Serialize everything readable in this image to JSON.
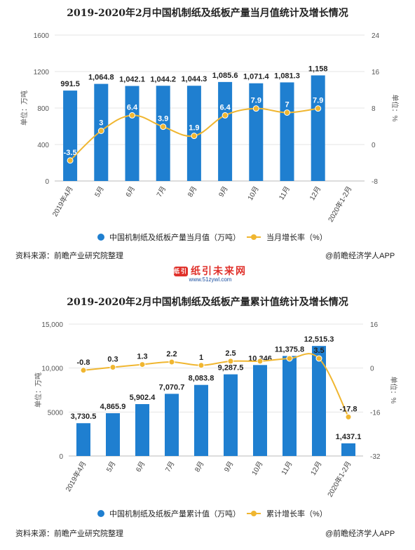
{
  "charts": [
    {
      "title": "2019-2020年2月中国机制纸及纸板产量当月值统计及增长情况",
      "left_axis_label": "单位：万吨",
      "right_axis_label": "单位：%",
      "legend": [
        "中国机制纸及纸板产量当月值（万吨）",
        "当月增长率（%）"
      ],
      "source": "资料来源：前瞻产业研究院整理",
      "brand": "@前瞻经济学人APP"
    },
    {
      "title": "2019-2020年2月中国机制纸及纸板产量累计值统计及增长情况",
      "left_axis_label": "单位：万吨",
      "right_axis_label": "单位：%",
      "legend": [
        "中国机制纸及纸板产量累计值（万吨）",
        "累计增长率（%）"
      ],
      "source": "资料来源：前瞻产业研究院整理",
      "brand": "@前瞻经济学人APP"
    }
  ],
  "logo": {
    "text": "纸引未来网",
    "url": "www.51zywl.com",
    "mark": "纸引未来"
  },
  "colors": {
    "bar": "#1f7fd0",
    "line": "#f0b630",
    "grid": "#e6e6e6"
  },
  "chart_data": [
    {
      "type": "bar",
      "title": "2019-2020年2月中国机制纸及纸板产量当月值统计及增长情况",
      "categories": [
        "2019年4月",
        "5月",
        "6月",
        "7月",
        "8月",
        "9月",
        "10月",
        "11月",
        "12月",
        "2020年1-2月"
      ],
      "series": [
        {
          "name": "中国机制纸及纸板产量当月值（万吨）",
          "axis": "left",
          "kind": "bar",
          "values": [
            991.5,
            1064.8,
            1042.1,
            1044.2,
            1044.3,
            1085.6,
            1071.4,
            1081.3,
            1158,
            null
          ],
          "labels": [
            "991.5",
            "1,064.8",
            "1,042.1",
            "1,044.2",
            "1,044.3",
            "1,085.6",
            "1,071.4",
            "1,081.3",
            "1,158",
            ""
          ]
        },
        {
          "name": "当月增长率（%）",
          "axis": "right",
          "kind": "line",
          "values": [
            -3.5,
            3,
            6.4,
            3.9,
            1.9,
            6.4,
            7.9,
            7,
            7.9,
            null
          ],
          "labels": [
            "-3.5",
            "3",
            "6.4",
            "3.9",
            "1.9",
            "6.4",
            "7.9",
            "7",
            "7.9",
            ""
          ]
        }
      ],
      "ylim_left": [
        0,
        1600
      ],
      "yticks_left": [
        "0",
        "400",
        "800",
        "1200",
        "1600"
      ],
      "ylim_right": [
        -8,
        24
      ],
      "yticks_right": [
        "-8",
        "0",
        "8",
        "16",
        "24"
      ],
      "ylabel_left": "单位：万吨",
      "ylabel_right": "单位：%",
      "legend_position": "bottom",
      "grid": true
    },
    {
      "type": "bar",
      "title": "2019-2020年2月中国机制纸及纸板产量累计值统计及增长情况",
      "categories": [
        "2019年4月",
        "5月",
        "6月",
        "7月",
        "8月",
        "9月",
        "10月",
        "11月",
        "12月",
        "2020年1-2月"
      ],
      "series": [
        {
          "name": "中国机制纸及纸板产量累计值（万吨）",
          "axis": "left",
          "kind": "bar",
          "values": [
            3730.5,
            4865.9,
            5902.4,
            7070.7,
            8083.8,
            9287.5,
            10346,
            11375.8,
            12515.3,
            1437.1
          ],
          "labels": [
            "3,730.5",
            "4,865.9",
            "5,902.4",
            "7,070.7",
            "8,083.8",
            "9,287.5",
            "10,346",
            "11,375.8",
            "12,515.3",
            "1,437.1"
          ]
        },
        {
          "name": "累计增长率（%）",
          "axis": "right",
          "kind": "line",
          "values": [
            -0.8,
            0.3,
            1.3,
            2.2,
            1,
            2.5,
            2.5,
            3.5,
            3.5,
            -17.8
          ],
          "labels": [
            "-0.8",
            "0.3",
            "1.3",
            "2.2",
            "1",
            "2.5",
            "",
            "",
            "3.5",
            "-17.8"
          ]
        }
      ],
      "ylim_left": [
        0,
        15000
      ],
      "yticks_left": [
        "0",
        "5000",
        "10,000",
        "15,000"
      ],
      "ylim_right": [
        -32,
        16
      ],
      "yticks_right": [
        "-32",
        "-16",
        "0",
        "16"
      ],
      "ylabel_left": "单位：万吨",
      "ylabel_right": "单位：%",
      "legend_position": "bottom",
      "grid": true
    }
  ]
}
